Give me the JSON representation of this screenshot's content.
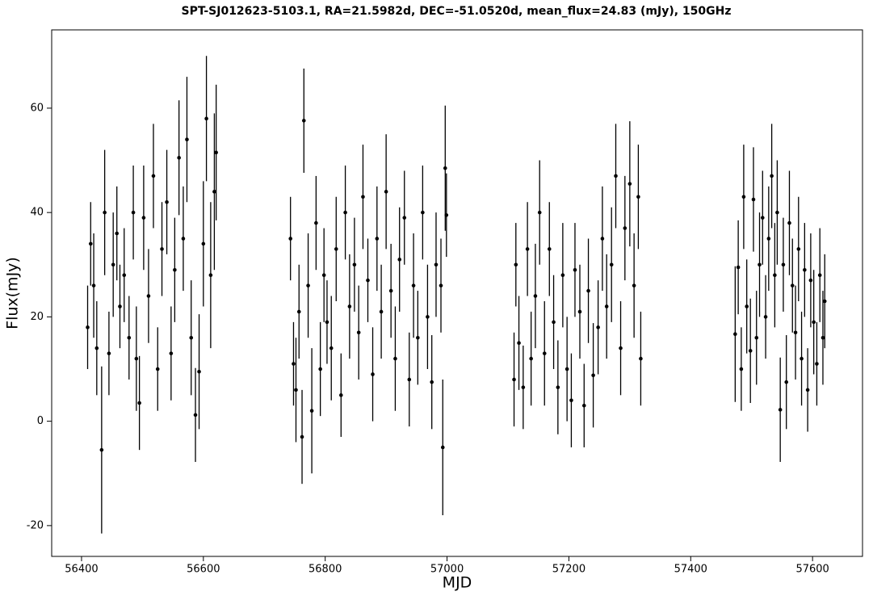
{
  "chart_data": {
    "type": "errorbar",
    "title": "SPT-SJ012623-5103.1, RA=21.5982d, DEC=-51.0520d, mean_flux=24.83 (mJy), 150GHz",
    "x_label": "MJD",
    "y_label": "Flux(mJy)",
    "xlim": [
      56351,
      57682
    ],
    "ylim": [
      -25.9,
      75
    ],
    "xticks": [
      56400,
      56600,
      56800,
      57000,
      57200,
      57400,
      57600
    ],
    "yticks": [
      -20,
      0,
      20,
      40,
      60
    ],
    "series": [
      {
        "color": "#000000",
        "x": [
          56410,
          56415,
          56420,
          56425,
          56433,
          56438,
          56445,
          56452,
          56458,
          56463,
          56470,
          56478,
          56485,
          56490,
          56495,
          56502,
          56510,
          56518,
          56525,
          56532,
          56540,
          56547,
          56553,
          56560,
          56567,
          56573,
          56580,
          56587,
          56593,
          56600,
          56605,
          56612,
          56618,
          56621,
          56743,
          56748,
          56752,
          56757,
          56762,
          56765,
          56772,
          56778,
          56785,
          56792,
          56798,
          56803,
          56810,
          56818,
          56826,
          56833,
          56840,
          56848,
          56855,
          56862,
          56870,
          56878,
          56885,
          56892,
          56900,
          56908,
          56915,
          56922,
          56930,
          56938,
          56945,
          56952,
          56960,
          56968,
          56975,
          56982,
          56990,
          56993,
          56997,
          56999,
          57110,
          57113,
          57118,
          57125,
          57132,
          57138,
          57145,
          57152,
          57160,
          57168,
          57175,
          57182,
          57190,
          57197,
          57204,
          57210,
          57218,
          57225,
          57232,
          57240,
          57248,
          57255,
          57262,
          57270,
          57277,
          57285,
          57292,
          57300,
          57307,
          57314,
          57318,
          57473,
          57478,
          57483,
          57487,
          57492,
          57498,
          57503,
          57508,
          57513,
          57518,
          57523,
          57528,
          57533,
          57538,
          57542,
          57547,
          57552,
          57557,
          57562,
          57567,
          57572,
          57577,
          57582,
          57587,
          57592,
          57597,
          57602,
          57607,
          57612,
          57617,
          57620
        ],
        "values": [
          18,
          34,
          26,
          14,
          -5.5,
          40,
          13,
          30,
          36,
          22,
          28,
          16,
          40,
          12,
          3.5,
          39,
          24,
          47,
          10,
          33,
          42,
          13,
          29,
          50.5,
          35,
          54,
          16,
          1.2,
          9.5,
          34,
          58,
          28,
          44,
          51.5,
          35,
          11,
          6,
          21,
          -3,
          57.6,
          26,
          2,
          38,
          10,
          28,
          19,
          14,
          33,
          5,
          40,
          22,
          30,
          17,
          43,
          27,
          9,
          35,
          21,
          44,
          25,
          12,
          31,
          39,
          8,
          26,
          16,
          40,
          20,
          7.5,
          30,
          26,
          -5,
          48.5,
          39.5,
          8,
          30,
          15,
          6.5,
          33,
          12,
          24,
          40,
          13,
          33,
          19,
          6.5,
          28,
          10,
          4,
          29,
          21,
          3,
          25,
          8.8,
          18,
          35,
          22,
          30,
          47,
          14,
          37,
          45.5,
          26,
          43,
          12,
          16.7,
          29.5,
          10,
          43,
          22,
          13.5,
          42.5,
          16,
          30,
          39,
          20,
          35,
          47,
          28,
          40,
          2.2,
          30,
          7.5,
          38,
          26,
          17,
          33,
          12,
          29,
          6,
          27,
          19,
          11,
          28,
          16,
          23
        ],
        "errors": [
          8,
          8,
          10,
          9,
          16,
          12,
          8,
          10,
          9,
          8,
          9,
          8,
          9,
          10,
          9,
          10,
          9,
          10,
          8,
          9,
          10,
          9,
          10,
          11,
          10,
          12,
          11,
          9,
          11,
          12,
          12,
          14,
          15,
          13,
          8,
          8,
          10,
          9,
          9,
          10,
          10,
          12,
          9,
          9,
          9,
          8,
          10,
          10,
          8,
          9,
          10,
          9,
          9,
          10,
          8,
          9,
          10,
          9,
          11,
          9,
          10,
          10,
          9,
          9,
          10,
          9,
          9,
          10,
          9,
          10,
          9,
          13,
          12,
          8,
          9,
          8,
          9,
          8,
          9,
          9,
          10,
          10,
          10,
          9,
          9,
          9,
          10,
          10,
          9,
          9,
          9,
          8,
          10,
          10,
          9,
          10,
          10,
          11,
          10,
          9,
          10,
          12,
          10,
          10,
          9,
          13,
          9,
          8,
          10,
          9,
          10,
          10,
          9,
          10,
          9,
          8,
          10,
          10,
          10,
          10,
          10,
          9,
          9,
          10,
          9,
          9,
          10,
          9,
          9,
          8,
          9,
          10,
          8,
          9,
          9,
          9
        ]
      }
    ]
  }
}
